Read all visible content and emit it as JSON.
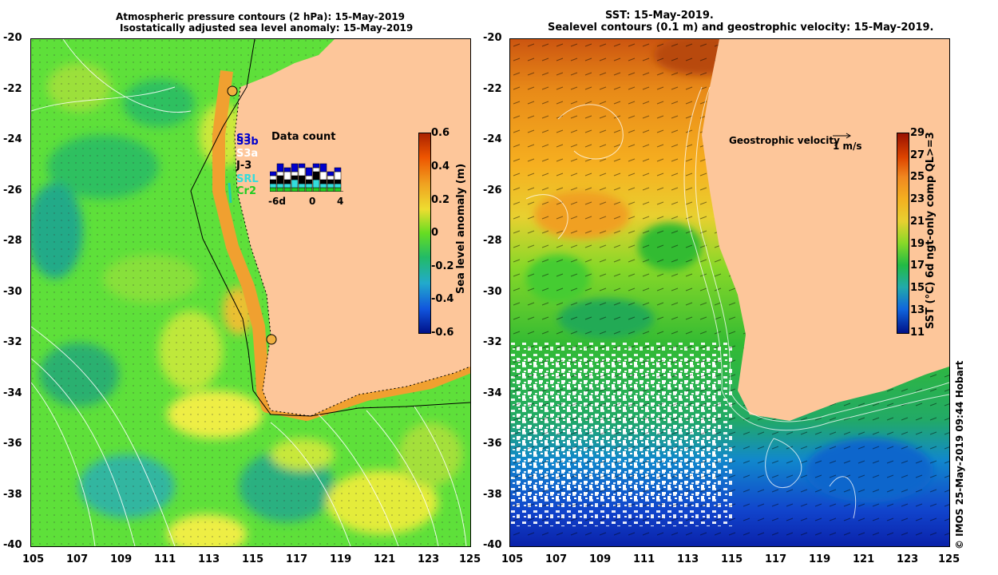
{
  "left_panel": {
    "title_line1": "Atmospheric pressure contours (2 hPa): 15-May-2019",
    "title_line2": "Isostatically adjusted sea level anomaly: 15-May-2019",
    "colorbar": {
      "label": "Sea level anomaly (m)",
      "ticks": [
        "0.6",
        "0.4",
        "0.2",
        "0",
        "-0.2",
        "-0.4",
        "-0.6"
      ]
    },
    "inset": {
      "title": "Data count",
      "xticks": [
        "-6d",
        "0",
        "4"
      ],
      "satellites": [
        {
          "name": "S3b",
          "color": "#0000cc"
        },
        {
          "name": "S3a",
          "color": "#ffffff"
        },
        {
          "name": "J-3",
          "color": "#000000"
        },
        {
          "name": "SRL",
          "color": "#33dddd"
        },
        {
          "name": "Cr2",
          "color": "#22cc22"
        }
      ],
      "extra_label": "S3",
      "bars": [
        [
          1,
          1,
          1,
          1,
          1
        ],
        [
          2,
          1,
          2,
          1,
          1
        ],
        [
          1,
          2,
          1,
          1,
          1
        ],
        [
          2,
          1,
          1,
          2,
          1
        ],
        [
          1,
          2,
          2,
          1,
          1
        ],
        [
          2,
          1,
          1,
          1,
          1
        ],
        [
          1,
          1,
          2,
          2,
          1
        ],
        [
          2,
          2,
          1,
          1,
          1
        ],
        [
          1,
          1,
          1,
          1,
          1
        ],
        [
          1,
          2,
          1,
          1,
          1
        ]
      ]
    }
  },
  "right_panel": {
    "title_line1": "SST: 15-May-2019.",
    "title_line2": "Sealevel contours (0.1 m) and geostrophic velocity: 15-May-2019.",
    "colorbar": {
      "label": "SST (°C) 6d ngt-only comp QL>=3",
      "ticks": [
        "29",
        "27",
        "25",
        "23",
        "21",
        "19",
        "17",
        "15",
        "13",
        "11"
      ]
    },
    "velocity_label": "Geostrophic velocity",
    "velocity_scale": "1 m/s"
  },
  "axes": {
    "y_ticks": [
      "-20",
      "-22",
      "-24",
      "-26",
      "-28",
      "-30",
      "-32",
      "-34",
      "-36",
      "-38",
      "-40"
    ],
    "x_ticks": [
      "105",
      "107",
      "109",
      "111",
      "113",
      "115",
      "117",
      "119",
      "121",
      "123",
      "125"
    ]
  },
  "credit": "©  IMOS 25-May-2019 09:44 Hobart",
  "colors": {
    "land": "#fdc69a",
    "sla_green": "#44dd22",
    "sla_yellow": "#ddee33",
    "sst_orange": "#f0a020",
    "sst_blue": "#1144cc"
  }
}
